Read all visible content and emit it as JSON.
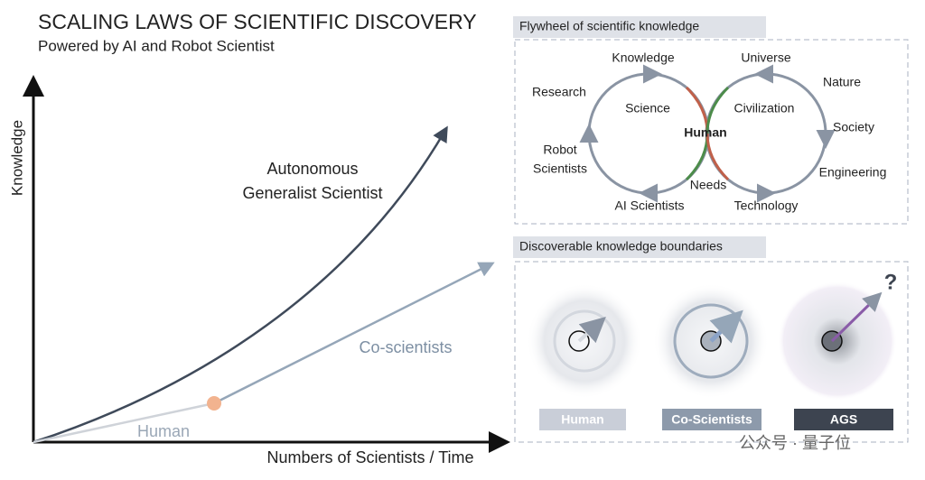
{
  "header": {
    "title": "SCALING LAWS OF SCIENTIFIC DISCOVERY",
    "subtitle": "Powered by AI and Robot Scientist"
  },
  "plot": {
    "y_axis_label": "Knowledge",
    "x_axis_label": "Numbers of Scientists / Time",
    "curves": {
      "ags": [
        "Autonomous",
        "Generalist Scientist"
      ],
      "co_scientists": "Co-scientists",
      "human": "Human"
    }
  },
  "flywheel": {
    "title": "Flywheel of scientific knowledge",
    "labels": {
      "knowledge": "Knowledge",
      "universe": "Universe",
      "research": "Research",
      "nature": "Nature",
      "science": "Science",
      "civilization": "Civilization",
      "human": "Human",
      "society": "Society",
      "robot_scientists": [
        "Robot",
        "Scientists"
      ],
      "engineering": "Engineering",
      "needs": "Needs",
      "ai_scientists": "AI Scientists",
      "technology": "Technology"
    }
  },
  "boundaries": {
    "title": "Discoverable knowledge boundaries",
    "question": "?",
    "panels": [
      "Human",
      "Co-Scientists",
      "AGS"
    ]
  },
  "watermark": "公众号 · 量子位"
}
